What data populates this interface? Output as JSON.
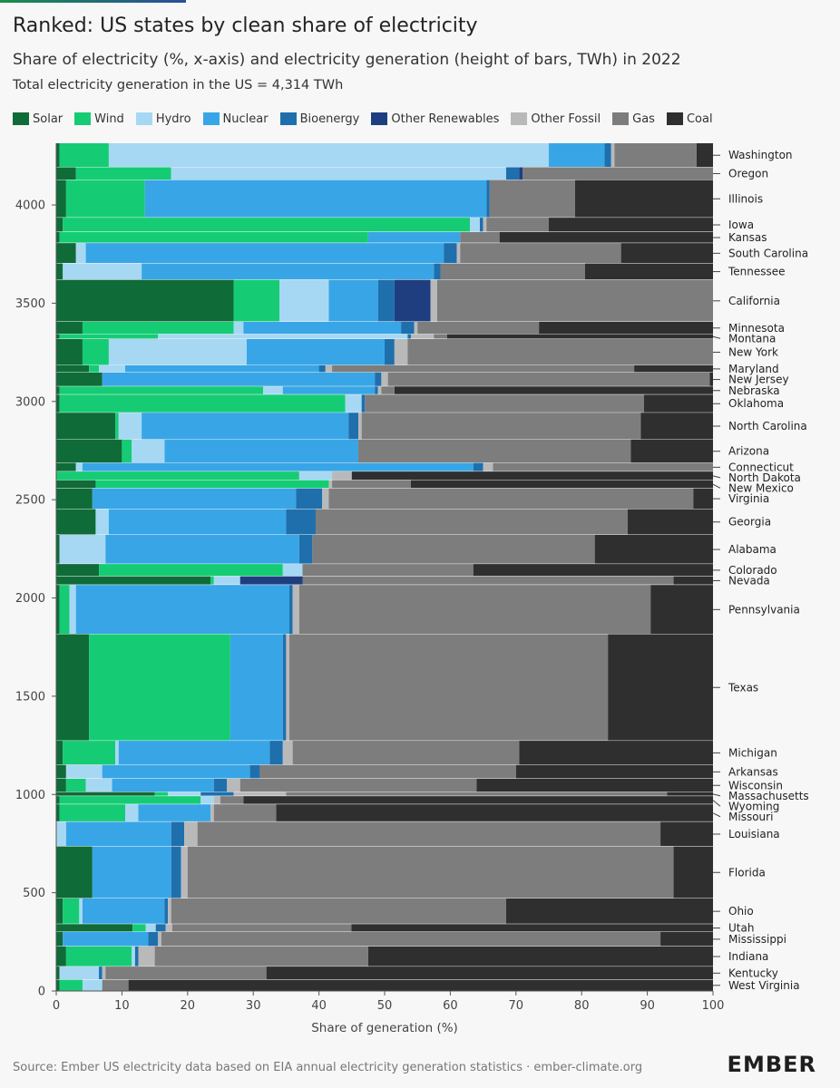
{
  "title": "Ranked: US states by clean share of electricity",
  "subtitle": "Share of electricity (%, x-axis) and electricity generation (height of bars, TWh) in 2022",
  "note": "Total electricity generation in the US = 4,314 TWh",
  "source": "Source: Ember US electricity data based on EIA annual electricity generation statistics · ember-climate.org",
  "logo": "EMBER",
  "chart_data": {
    "type": "bar",
    "variant": "marimekko-stacked-horizontal",
    "xlabel": "Share of generation (%)",
    "ylabel": "",
    "xlim": [
      0,
      100
    ],
    "ylim": [
      0,
      4314
    ],
    "xticks": [
      0,
      10,
      20,
      30,
      40,
      50,
      60,
      70,
      80,
      90,
      100
    ],
    "yticks": [
      0,
      500,
      1000,
      1500,
      2000,
      2500,
      3000,
      3500,
      4000
    ],
    "legend_position": "top",
    "grid": false,
    "sources": [
      "Solar",
      "Wind",
      "Hydro",
      "Nuclear",
      "Bioenergy",
      "Other Renewables",
      "Other Fossil",
      "Gas",
      "Coal"
    ],
    "colors": {
      "Solar": "#0f6b38",
      "Wind": "#15cc74",
      "Hydro": "#a6d8f4",
      "Nuclear": "#38a6e6",
      "Bioenergy": "#1f6fad",
      "Other Renewables": "#1f3e80",
      "Other Fossil": "#b9b9b9",
      "Gas": "#7d7d7d",
      "Coal": "#2f2f2f"
    },
    "states": [
      {
        "name": "Washington",
        "generation": 117,
        "shares": [
          0.5,
          7.5,
          67,
          8.5,
          1,
          0,
          0.5,
          12.5,
          2.5
        ]
      },
      {
        "name": "Oregon",
        "generation": 62,
        "shares": [
          3,
          14.5,
          51,
          0,
          2,
          0.5,
          0,
          29,
          0
        ]
      },
      {
        "name": "Illinois",
        "generation": 184,
        "shares": [
          1.5,
          12,
          0,
          52,
          0.5,
          0,
          0,
          13,
          21
        ]
      },
      {
        "name": "Iowa",
        "generation": 70,
        "shares": [
          1,
          62,
          1.5,
          0,
          0.5,
          0,
          0.5,
          9.5,
          25
        ]
      },
      {
        "name": "Kansas",
        "generation": 54,
        "shares": [
          0.5,
          47,
          0,
          14,
          0,
          0,
          0,
          6,
          32.5
        ]
      },
      {
        "name": "South Carolina",
        "generation": 99,
        "shares": [
          3,
          0,
          1.5,
          54.5,
          2,
          0,
          0.5,
          24.5,
          14
        ]
      },
      {
        "name": "Tennessee",
        "generation": 80,
        "shares": [
          1,
          0,
          12,
          44.5,
          1,
          0,
          0,
          22,
          19.5
        ]
      },
      {
        "name": "California",
        "generation": 205,
        "shares": [
          27,
          7,
          7.5,
          7.5,
          2.5,
          5.5,
          1,
          42,
          0
        ]
      },
      {
        "name": "Minnesota",
        "generation": 60,
        "shares": [
          4,
          23,
          1.5,
          24,
          2,
          0,
          0.5,
          18.5,
          26.5
        ]
      },
      {
        "name": "Montana",
        "generation": 24,
        "shares": [
          0.5,
          15,
          38,
          0,
          0.5,
          0,
          3.5,
          2,
          40.5
        ]
      },
      {
        "name": "New York",
        "generation": 128,
        "shares": [
          4,
          4,
          21,
          21,
          1.5,
          0,
          2,
          46.5,
          0
        ]
      },
      {
        "name": "Maryland",
        "generation": 35,
        "shares": [
          5,
          1.5,
          4,
          29.5,
          1,
          0,
          1,
          46,
          12
        ]
      },
      {
        "name": "New Jersey",
        "generation": 68,
        "shares": [
          7,
          0,
          0,
          41.5,
          1,
          0,
          1,
          49,
          0.5
        ]
      },
      {
        "name": "Nebraska",
        "generation": 40,
        "shares": [
          0.5,
          31,
          3,
          14,
          0.5,
          0,
          0.5,
          2,
          48.5
        ]
      },
      {
        "name": "Oklahoma",
        "generation": 88,
        "shares": [
          0.5,
          43.5,
          2.5,
          0,
          0.5,
          0,
          0,
          42.5,
          10.5
        ]
      },
      {
        "name": "North Carolina",
        "generation": 131,
        "shares": [
          9,
          0.5,
          3.5,
          31.5,
          1.5,
          0,
          0.5,
          42.5,
          11
        ]
      },
      {
        "name": "Arizona",
        "generation": 114,
        "shares": [
          10,
          1.5,
          5,
          29.5,
          0,
          0,
          0,
          41.5,
          12.5
        ]
      },
      {
        "name": "Connecticut",
        "generation": 42,
        "shares": [
          3,
          0,
          1,
          59.5,
          1.5,
          0,
          1.5,
          33.5,
          0
        ]
      },
      {
        "name": "North Dakota",
        "generation": 42,
        "shares": [
          0,
          37,
          5,
          0,
          0,
          0,
          3,
          0,
          55
        ]
      },
      {
        "name": "New Mexico",
        "generation": 40,
        "shares": [
          6,
          35.5,
          0,
          0,
          0,
          0,
          0.5,
          12,
          46
        ]
      },
      {
        "name": "Virginia",
        "generation": 101,
        "shares": [
          5.5,
          0,
          0,
          31,
          4,
          0,
          1,
          55.5,
          3
        ]
      },
      {
        "name": "Georgia",
        "generation": 126,
        "shares": [
          6,
          0,
          2,
          27,
          4.5,
          0,
          0,
          47.5,
          13
        ]
      },
      {
        "name": "Alabama",
        "generation": 142,
        "shares": [
          0.5,
          0,
          7,
          29.5,
          2,
          0,
          0,
          43,
          18
        ]
      },
      {
        "name": "Colorado",
        "generation": 60,
        "shares": [
          6.5,
          28,
          3,
          0,
          0,
          0,
          0,
          26,
          36.5
        ]
      },
      {
        "name": "Nevada",
        "generation": 42,
        "shares": [
          23.5,
          0.5,
          4,
          0,
          0,
          9.5,
          0,
          56.5,
          6
        ]
      },
      {
        "name": "Pennsylvania",
        "generation": 240,
        "shares": [
          0.5,
          1.5,
          1,
          32.5,
          0.5,
          0,
          1,
          53.5,
          9.5
        ]
      },
      {
        "name": "Texas",
        "generation": 520,
        "shares": [
          5,
          21.5,
          0,
          8,
          0.5,
          0,
          0.5,
          48.5,
          16
        ]
      },
      {
        "name": "Michigan",
        "generation": 118,
        "shares": [
          1,
          8,
          0.5,
          23,
          2,
          0,
          1.5,
          34.5,
          29.5
        ]
      },
      {
        "name": "Arkansas",
        "generation": 67,
        "shares": [
          1.5,
          0,
          5.5,
          22.5,
          1.5,
          0,
          0,
          39,
          30
        ]
      },
      {
        "name": "Wisconsin",
        "generation": 65,
        "shares": [
          1.5,
          3,
          4,
          15.5,
          2,
          0,
          2,
          36,
          36
        ]
      },
      {
        "name": "Massachusetts",
        "generation": 20,
        "shares": [
          15,
          2,
          5,
          0,
          5,
          0,
          8,
          58,
          7
        ]
      },
      {
        "name": "Wyoming",
        "generation": 40,
        "shares": [
          0.5,
          21.5,
          2,
          0,
          0,
          0,
          1,
          3.5,
          71.5
        ]
      },
      {
        "name": "Missouri",
        "generation": 85,
        "shares": [
          0.5,
          10,
          2,
          11,
          0,
          0,
          0.5,
          9.5,
          66.5
        ]
      },
      {
        "name": "Louisiana",
        "generation": 120,
        "shares": [
          0,
          0,
          1.5,
          16,
          2,
          0,
          2,
          70.5,
          8
        ]
      },
      {
        "name": "Florida",
        "generation": 254,
        "shares": [
          5.5,
          0,
          0,
          12,
          1.5,
          0,
          1,
          74,
          6
        ]
      },
      {
        "name": "Ohio",
        "generation": 125,
        "shares": [
          1,
          2.5,
          0.5,
          12.5,
          0.5,
          0,
          0.5,
          51,
          31.5
        ]
      },
      {
        "name": "Utah",
        "generation": 38,
        "shares": [
          11.5,
          2,
          1.5,
          0,
          1.5,
          0,
          1,
          27,
          54.5
        ]
      },
      {
        "name": "Mississippi",
        "generation": 71,
        "shares": [
          1,
          0,
          0,
          13,
          1.5,
          0,
          0.5,
          76,
          8
        ]
      },
      {
        "name": "Indiana",
        "generation": 98,
        "shares": [
          1.5,
          10,
          0.5,
          0,
          0.5,
          0,
          2.5,
          32.5,
          52.5
        ]
      },
      {
        "name": "Kentucky",
        "generation": 64,
        "shares": [
          0.5,
          0,
          6,
          0,
          0.5,
          0,
          0.5,
          24.5,
          68
        ]
      },
      {
        "name": "West Virginia",
        "generation": 55,
        "shares": [
          0.5,
          3.5,
          3,
          0,
          0,
          0,
          0,
          4,
          89
        ]
      }
    ]
  }
}
